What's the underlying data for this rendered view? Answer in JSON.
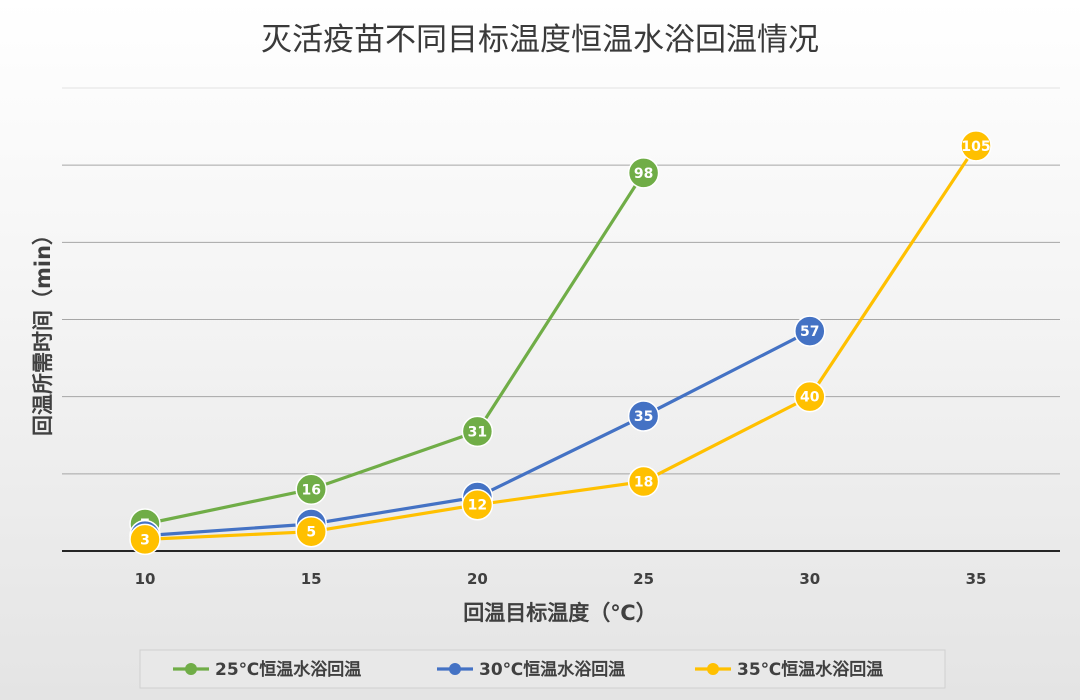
{
  "chart_data": {
    "type": "line",
    "title": "灭活疫苗不同目标温度恒温水浴回温情况",
    "xlabel": "回温目标温度（℃）",
    "ylabel": "回温所需时间（min）",
    "x": [
      10,
      15,
      20,
      25,
      30,
      35
    ],
    "ylim": [
      0,
      120
    ],
    "y_gridlines": [
      20,
      40,
      60,
      80,
      100,
      120
    ],
    "legend_position": "bottom",
    "series": [
      {
        "name": "25℃恒温水浴回温",
        "color": "#70ad47",
        "x": [
          10,
          15,
          20,
          25
        ],
        "values": [
          7,
          16,
          31,
          98
        ]
      },
      {
        "name": "30℃恒温水浴回温",
        "color": "#4472c4",
        "x": [
          10,
          15,
          20,
          25,
          30
        ],
        "values": [
          4,
          7,
          14,
          35,
          57
        ]
      },
      {
        "name": "35℃恒温水浴回温",
        "color": "#ffc000",
        "x": [
          10,
          15,
          20,
          25,
          30,
          35
        ],
        "values": [
          3,
          5,
          12,
          18,
          40,
          105
        ]
      }
    ]
  }
}
